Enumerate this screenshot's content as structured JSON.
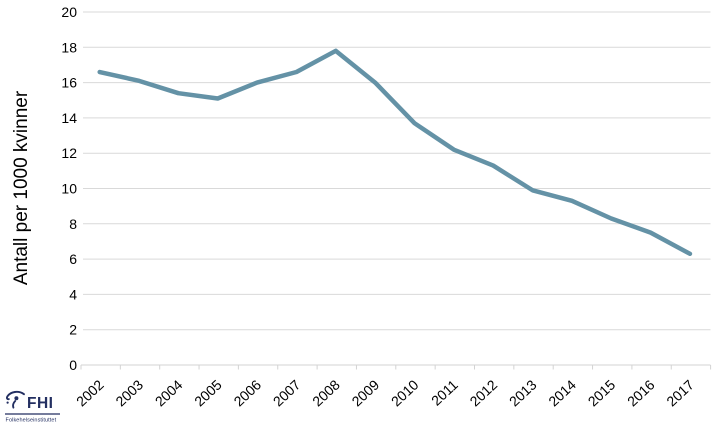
{
  "chart_data": {
    "type": "line",
    "title": "",
    "categories": [
      "2002",
      "2003",
      "2004",
      "2005",
      "2006",
      "2007",
      "2008",
      "2009",
      "2010",
      "2011",
      "2012",
      "2013",
      "2014",
      "2015",
      "2016",
      "2017"
    ],
    "series": [
      {
        "name": "Antall per 1000 kvinner",
        "values": [
          16.6,
          16.1,
          15.4,
          15.1,
          16.0,
          16.6,
          17.8,
          16.0,
          13.7,
          12.2,
          11.3,
          9.9,
          9.3,
          8.3,
          7.5,
          6.3
        ]
      }
    ],
    "xlabel": "",
    "ylabel": "Antall per 1000 kvinner",
    "ylim": [
      0,
      20
    ],
    "ytick_step": 2,
    "ytick_labels": [
      "0",
      "2",
      "4",
      "6",
      "8",
      "10",
      "12",
      "14",
      "16",
      "18",
      "20"
    ],
    "grid": "horizontal-only",
    "legend_position": "none",
    "x_label_rotation_deg": -43
  },
  "colors": {
    "line": "#6492a6",
    "gridline": "#d9d9d9",
    "axis_line": "#d3d3d3",
    "tick_text": "#000000",
    "logo_navy": "#232f61"
  },
  "logo": {
    "abbrev": "FHI",
    "name": "Folkehelseinstituttet"
  }
}
